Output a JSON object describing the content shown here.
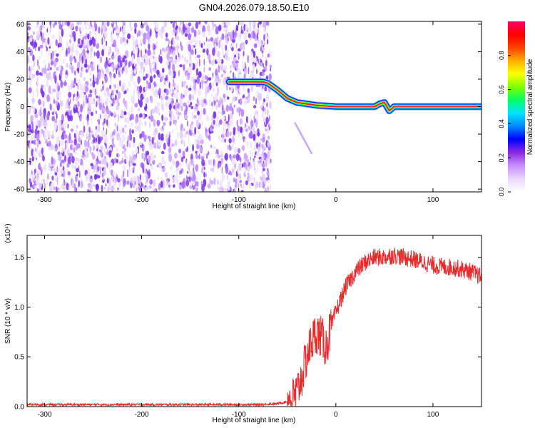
{
  "figure_title": "GN04.2026.079.18.50.E10",
  "chart_data": [
    {
      "type": "heatmap",
      "title": "",
      "xlabel": "Height of straight line (km)",
      "ylabel": "Frequency (Hz)",
      "xlim": [
        -318,
        150
      ],
      "ylim": [
        -62,
        62
      ],
      "xticks": [
        -300,
        -200,
        -100,
        0,
        100
      ],
      "yticks": [
        -60,
        -40,
        -20,
        0,
        20,
        40,
        60
      ],
      "noise_region_x": [
        -318,
        -70
      ],
      "ridge": {
        "x": [
          -110,
          -75,
          -70,
          -60,
          -50,
          -40,
          -30,
          -20,
          0,
          20,
          40,
          45,
          50,
          55,
          60,
          80,
          100,
          120,
          150
        ],
        "y": [
          18,
          18,
          17,
          12,
          6,
          3,
          2,
          1,
          0,
          0,
          0,
          2,
          3,
          -3,
          0,
          0,
          0,
          0,
          0
        ]
      },
      "faint_streak": {
        "x": [
          -42,
          -25
        ],
        "y": [
          -12,
          -34
        ]
      },
      "colorbar": {
        "label": "Normalized spectral amplitude",
        "ticks": [
          0.0,
          0.2,
          0.4,
          0.6,
          0.8
        ],
        "range": [
          0,
          1
        ],
        "colors": [
          "#ffffff",
          "#e8d8ff",
          "#c890ff",
          "#8a2be2",
          "#0000ff",
          "#0088ff",
          "#00e5ff",
          "#00ff66",
          "#7cff00",
          "#ffff00",
          "#ffb000",
          "#ff4000",
          "#ff0000",
          "#ff0066"
        ]
      }
    },
    {
      "type": "line",
      "title": "",
      "xlabel": "Height of straight line (km)",
      "ylabel": "SNR (10 * v/v)",
      "y_scale_label": "(x10⁴)",
      "xlim": [
        -318,
        150
      ],
      "ylim": [
        0,
        1.72
      ],
      "xticks": [
        -300,
        -200,
        -100,
        0,
        100
      ],
      "yticks": [
        0.0,
        0.5,
        1.0,
        1.5
      ],
      "color": "#e52b2b",
      "series": [
        {
          "x": [
            -318,
            -250,
            -150,
            -80,
            -60,
            -50,
            -45,
            -40,
            -35,
            -30,
            -25,
            -20,
            -15,
            -10,
            -5,
            0,
            10,
            20,
            30,
            40,
            50,
            60,
            70,
            80,
            90,
            100,
            110,
            120,
            130,
            140,
            150
          ],
          "values": [
            0.02,
            0.02,
            0.02,
            0.02,
            0.03,
            0.05,
            0.07,
            0.15,
            0.3,
            0.5,
            0.65,
            0.75,
            0.7,
            0.6,
            0.8,
            0.95,
            1.2,
            1.35,
            1.45,
            1.5,
            1.5,
            1.52,
            1.5,
            1.48,
            1.45,
            1.42,
            1.4,
            1.4,
            1.38,
            1.35,
            1.3
          ]
        }
      ]
    }
  ]
}
